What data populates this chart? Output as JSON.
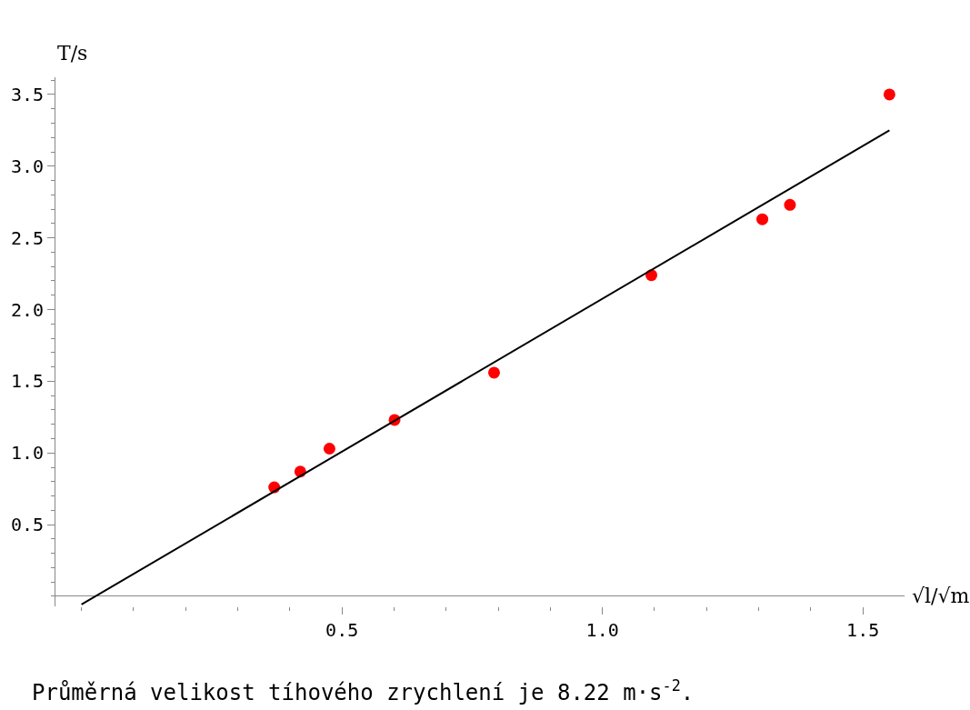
{
  "chart_data": {
    "type": "scatter",
    "xlabel": "√l/√m",
    "ylabel": "T/s",
    "xlim": [
      -0.05,
      1.58
    ],
    "ylim": [
      -0.07,
      3.62
    ],
    "xticks": [
      0.5,
      {
        "value": 1,
        "label": "1.0"
      },
      1.5
    ],
    "yticks": [
      0.5,
      {
        "value": 1,
        "label": "1.0"
      },
      1.5,
      {
        "value": 2,
        "label": "2.0"
      },
      2.5,
      {
        "value": 3,
        "label": "3.0"
      },
      3.5
    ],
    "legend": false,
    "series": [
      {
        "marker": "circle",
        "color": "#ff0000",
        "x": [
          0.37,
          0.42,
          0.476,
          0.601,
          0.792,
          1.094,
          1.307,
          1.36,
          1.551
        ],
        "values": [
          0.76,
          0.87,
          1.03,
          1.23,
          1.56,
          2.24,
          2.63,
          2.73,
          3.5
        ]
      },
      {
        "type": "line",
        "color": "#000000",
        "x": [
          0.0,
          1.551
        ],
        "values": [
          -0.057,
          3.25
        ]
      }
    ],
    "annotations": [
      "Průměrná velikost tíhového zrychlení je 8.22 m·s$^{-2}$."
    ]
  }
}
